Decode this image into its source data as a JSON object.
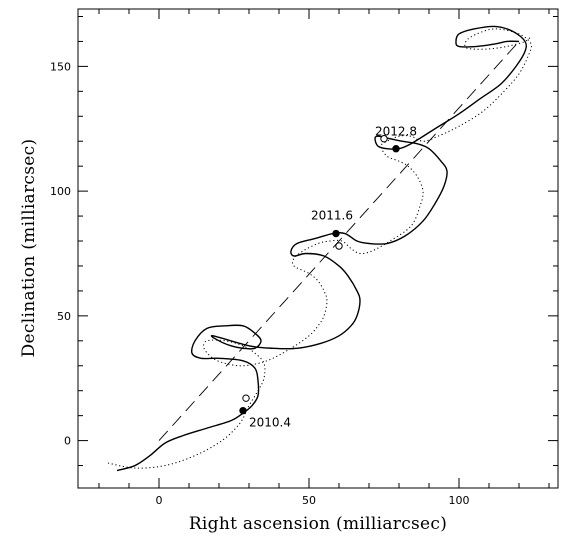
{
  "chart_data": {
    "type": "line",
    "xlabel": "Right ascension (milliarcsec)",
    "ylabel": "Declination (milliarcsec)",
    "xlim": [
      -27,
      133
    ],
    "ylim": [
      -19,
      173
    ],
    "x_ticks": [
      0,
      50,
      100
    ],
    "y_ticks": [
      0,
      50,
      100,
      150
    ],
    "grid": false,
    "series": [
      {
        "style": "solid",
        "points": [
          [
            -14,
            -12
          ],
          [
            -8,
            -10
          ],
          [
            -3,
            -6
          ],
          [
            2,
            -1
          ],
          [
            8,
            2
          ],
          [
            16,
            5
          ],
          [
            24,
            8
          ],
          [
            28,
            11
          ],
          [
            31,
            14
          ],
          [
            33,
            18
          ],
          [
            33,
            24
          ],
          [
            32,
            29
          ],
          [
            28,
            32
          ],
          [
            20,
            33
          ],
          [
            14,
            33
          ],
          [
            11,
            35
          ],
          [
            12,
            40
          ],
          [
            16,
            45
          ],
          [
            22,
            46
          ],
          [
            28,
            46
          ],
          [
            32,
            43
          ],
          [
            34,
            40
          ],
          [
            32,
            37
          ],
          [
            28,
            37
          ],
          [
            24,
            38
          ],
          [
            20,
            40
          ],
          [
            18,
            42
          ],
          [
            30,
            38
          ],
          [
            38,
            37
          ],
          [
            46,
            37
          ],
          [
            54,
            39
          ],
          [
            60,
            42
          ],
          [
            64,
            46
          ],
          [
            66,
            50
          ],
          [
            67,
            56
          ],
          [
            66,
            60
          ],
          [
            63,
            66
          ],
          [
            60,
            70
          ],
          [
            55,
            74
          ],
          [
            49,
            75
          ],
          [
            45,
            74
          ],
          [
            44,
            76
          ],
          [
            46,
            79
          ],
          [
            52,
            81
          ],
          [
            58,
            83
          ],
          [
            62,
            83
          ],
          [
            66,
            80
          ],
          [
            70,
            79
          ],
          [
            76,
            79
          ],
          [
            82,
            82
          ],
          [
            88,
            88
          ],
          [
            92,
            95
          ],
          [
            95,
            102
          ],
          [
            96,
            108
          ],
          [
            94,
            112
          ],
          [
            90,
            117
          ],
          [
            86,
            119
          ],
          [
            81,
            120
          ],
          [
            77,
            121
          ],
          [
            73,
            122
          ],
          [
            72,
            121
          ],
          [
            73,
            118
          ],
          [
            76,
            117
          ],
          [
            80,
            117
          ],
          [
            84,
            119
          ],
          [
            92,
            125
          ],
          [
            100,
            131
          ],
          [
            107,
            137
          ],
          [
            114,
            143
          ],
          [
            119,
            150
          ],
          [
            122,
            156
          ],
          [
            122,
            160
          ],
          [
            118,
            164
          ],
          [
            112,
            166
          ],
          [
            105,
            165
          ],
          [
            100,
            163
          ],
          [
            99,
            160
          ],
          [
            100,
            158
          ],
          [
            106,
            158
          ],
          [
            112,
            159
          ],
          [
            116,
            160
          ],
          [
            120,
            160
          ]
        ]
      },
      {
        "style": "dotted",
        "points": [
          [
            -17,
            -9
          ],
          [
            -8,
            -11
          ],
          [
            2,
            -10
          ],
          [
            12,
            -6
          ],
          [
            21,
            0
          ],
          [
            27,
            7
          ],
          [
            30,
            14
          ],
          [
            33,
            20
          ],
          [
            35,
            25
          ],
          [
            35,
            31
          ],
          [
            32,
            35
          ],
          [
            28,
            38
          ],
          [
            22,
            40
          ],
          [
            16,
            40
          ],
          [
            15,
            37
          ],
          [
            18,
            33
          ],
          [
            22,
            31
          ],
          [
            28,
            30
          ],
          [
            36,
            32
          ],
          [
            44,
            37
          ],
          [
            50,
            42
          ],
          [
            53,
            46
          ],
          [
            55,
            50
          ],
          [
            56,
            56
          ],
          [
            55,
            60
          ],
          [
            53,
            64
          ],
          [
            50,
            67
          ],
          [
            45,
            70
          ],
          [
            45,
            73
          ],
          [
            48,
            76
          ],
          [
            53,
            79
          ],
          [
            57,
            80
          ],
          [
            61,
            80
          ],
          [
            64,
            77
          ],
          [
            67,
            75
          ],
          [
            71,
            76
          ],
          [
            77,
            80
          ],
          [
            84,
            86
          ],
          [
            87,
            94
          ],
          [
            88,
            100
          ],
          [
            86,
            106
          ],
          [
            83,
            110
          ],
          [
            80,
            112
          ],
          [
            76,
            114
          ],
          [
            74,
            118
          ],
          [
            76,
            120
          ],
          [
            80,
            122
          ],
          [
            84,
            122
          ],
          [
            88,
            120
          ],
          [
            93,
            122
          ],
          [
            100,
            126
          ],
          [
            108,
            132
          ],
          [
            115,
            140
          ],
          [
            120,
            147
          ],
          [
            123,
            154
          ],
          [
            124,
            159
          ],
          [
            120,
            163
          ],
          [
            113,
            165
          ],
          [
            108,
            164
          ],
          [
            103,
            161
          ],
          [
            102,
            158
          ],
          [
            104,
            157
          ],
          [
            110,
            157
          ],
          [
            116,
            158
          ],
          [
            122,
            160
          ],
          [
            124,
            162
          ]
        ]
      },
      {
        "style": "dashed",
        "points": [
          [
            0,
            0
          ],
          [
            120,
            160
          ]
        ]
      }
    ],
    "epochs": [
      {
        "label": "2010.4",
        "filled": [
          28,
          12
        ],
        "open": [
          29,
          17
        ]
      },
      {
        "label": "2011.6",
        "filled": [
          59,
          83
        ],
        "open": [
          60,
          78
        ]
      },
      {
        "label": "2012.8",
        "filled": [
          79,
          117
        ],
        "open": [
          75,
          121
        ]
      }
    ]
  }
}
